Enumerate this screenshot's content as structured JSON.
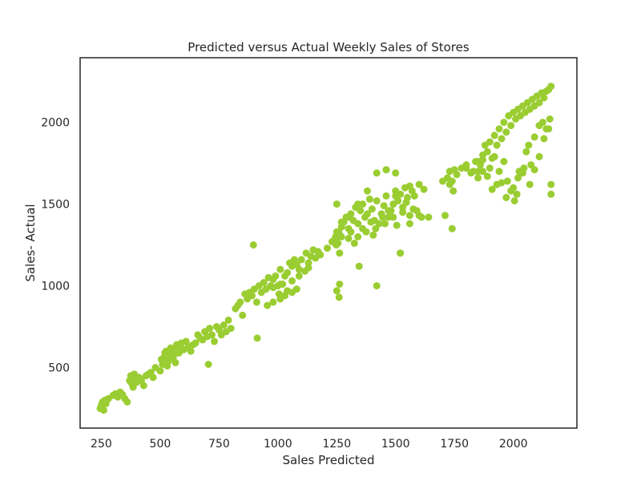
{
  "chart_data": {
    "type": "scatter",
    "title": "Predicted versus Actual Weekly Sales of Stores",
    "xlabel": "Sales Predicted",
    "ylabel": "Sales- Actual",
    "xlim": [
      160,
      2270
    ],
    "ylim": [
      130,
      2395
    ],
    "xticks": [
      250,
      500,
      750,
      1000,
      1250,
      1500,
      1750,
      2000
    ],
    "yticks": [
      500,
      1000,
      1500,
      2000
    ],
    "grid": false,
    "marker_color": "#9acd32",
    "x": [
      245,
      250,
      255,
      260,
      265,
      270,
      280,
      300,
      310,
      320,
      330,
      340,
      350,
      360,
      370,
      375,
      380,
      385,
      390,
      395,
      400,
      410,
      420,
      430,
      440,
      450,
      460,
      470,
      480,
      500,
      505,
      510,
      515,
      520,
      525,
      530,
      535,
      540,
      545,
      550,
      555,
      560,
      565,
      570,
      575,
      580,
      590,
      600,
      610,
      620,
      630,
      640,
      650,
      660,
      670,
      680,
      690,
      700,
      705,
      710,
      720,
      730,
      740,
      750,
      760,
      770,
      780,
      790,
      800,
      820,
      830,
      840,
      850,
      860,
      870,
      880,
      890,
      900,
      910,
      920,
      930,
      940,
      950,
      960,
      970,
      980,
      990,
      1000,
      1005,
      1010,
      1020,
      1030,
      1040,
      1050,
      1060,
      1070,
      1080,
      1090,
      1100,
      1120,
      1130,
      1140,
      1150,
      1160,
      1170,
      1180,
      1240,
      1245,
      1250,
      1255,
      1260,
      1270,
      1280,
      1290,
      1300,
      1310,
      1320,
      1330,
      1340,
      1350,
      1360,
      1370,
      1380,
      1390,
      1400,
      1410,
      1420,
      1430,
      1440,
      1450,
      1460,
      1470,
      1480,
      1490,
      1500,
      1510,
      1520,
      1530,
      1540,
      1550,
      1560,
      1570,
      1580,
      1600,
      1620,
      1700,
      1710,
      1720,
      1730,
      1740,
      1750,
      1760,
      1780,
      1800,
      1820,
      1840,
      1850,
      1860,
      1870,
      1880,
      1890,
      1900,
      1910,
      1920,
      1930,
      1940,
      1950,
      1960,
      1970,
      1980,
      1990,
      2000,
      2010,
      2020,
      2030,
      2040,
      2050,
      2060,
      2070,
      2080,
      2090,
      2100,
      2110,
      2120,
      2130,
      2140,
      2150,
      2160,
      896,
      912,
      1250,
      1262,
      1740,
      2160,
      1460,
      1520,
      1420,
      1500
    ],
    "y": [
      250,
      270,
      290,
      240,
      300,
      280,
      310,
      330,
      340,
      320,
      350,
      335,
      310,
      290,
      420,
      450,
      400,
      380,
      460,
      430,
      410,
      440,
      420,
      390,
      450,
      460,
      470,
      440,
      500,
      480,
      550,
      520,
      560,
      590,
      600,
      510,
      540,
      570,
      620,
      600,
      560,
      580,
      530,
      640,
      620,
      590,
      650,
      610,
      660,
      630,
      600,
      640,
      650,
      700,
      680,
      670,
      720,
      690,
      520,
      740,
      700,
      660,
      750,
      730,
      700,
      760,
      720,
      790,
      740,
      860,
      880,
      900,
      820,
      950,
      920,
      960,
      940,
      980,
      900,
      1000,
      960,
      1020,
      980,
      1050,
      1000,
      1040,
      1060,
      1000,
      950,
      1100,
      1010,
      1060,
      1080,
      1140,
      1120,
      1160,
      1130,
      1100,
      1160,
      1200,
      1140,
      1180,
      1220,
      1170,
      1210,
      1190,
      1280,
      1300,
      1330,
      1260,
      1320,
      1360,
      1390,
      1420,
      1350,
      1440,
      1400,
      1480,
      1380,
      1460,
      1500,
      1420,
      1440,
      1530,
      1470,
      1400,
      1520,
      1380,
      1440,
      1490,
      1550,
      1420,
      1460,
      1500,
      1580,
      1520,
      1560,
      1480,
      1600,
      1540,
      1610,
      1580,
      1550,
      1620,
      1590,
      1640,
      1430,
      1660,
      1700,
      1640,
      1710,
      1680,
      1720,
      1740,
      1690,
      1760,
      1700,
      1740,
      1800,
      1860,
      1820,
      1880,
      1780,
      1920,
      1860,
      1960,
      1900,
      2000,
      1940,
      2040,
      1980,
      2060,
      2020,
      2080,
      2040,
      2100,
      2060,
      2120,
      2080,
      2140,
      2100,
      2160,
      2120,
      2180,
      2150,
      2190,
      2200,
      2220,
      1250,
      680,
      1500,
      1010,
      1350,
      1560,
      1710,
      1200,
      1000,
      1690
    ],
    "extra_points": {
      "x": [
        980,
        1010,
        1040,
        1060,
        1090,
        1115,
        1130,
        1180,
        1210,
        1230,
        1248,
        1252,
        1258,
        1262,
        1270,
        1300,
        1310,
        1325,
        1340,
        1360,
        1375,
        1395,
        1405,
        1415,
        1445,
        1455,
        1470,
        1490,
        1505,
        1530,
        1545,
        1560,
        1575,
        1590,
        1610,
        1640,
        1730,
        1745,
        1800,
        1830,
        1850,
        1870,
        1900,
        1920,
        1940,
        1960,
        1975,
        1990,
        2005,
        2015,
        2025,
        2045,
        2055,
        2065,
        2075,
        2090,
        2110,
        2125,
        2140,
        2155,
        1850,
        1870,
        1890,
        1910,
        1930,
        1950,
        1970,
        2000,
        2020,
        2040,
        2070,
        2090,
        2110,
        2130,
        2150,
        2160,
        1250,
        1260,
        1345,
        1520,
        1560,
        1600,
        1500,
        1460,
        1420,
        1380,
        1340,
        1300,
        1270,
        1255,
        955,
        980,
        1010,
        1030,
        1060,
        1080
      ],
      "y": [
        990,
        1010,
        970,
        1030,
        1060,
        1090,
        1110,
        1190,
        1230,
        1270,
        1250,
        1300,
        1330,
        1200,
        1300,
        1290,
        1330,
        1260,
        1300,
        1350,
        1330,
        1390,
        1310,
        1350,
        1420,
        1380,
        1460,
        1420,
        1370,
        1450,
        1510,
        1430,
        1470,
        1460,
        1420,
        1420,
        1620,
        1580,
        1720,
        1700,
        1660,
        1770,
        1720,
        1790,
        1700,
        1760,
        1640,
        1580,
        1520,
        1560,
        1700,
        1720,
        1820,
        1860,
        1740,
        1910,
        1980,
        2000,
        1960,
        2020,
        1760,
        1700,
        1670,
        1590,
        1620,
        1630,
        1540,
        1600,
        1660,
        1690,
        1620,
        1710,
        1790,
        1900,
        1960,
        1620,
        970,
        930,
        1120,
        1200,
        1380,
        1430,
        1550,
        1710,
        1690,
        1580,
        1500,
        1420,
        1390,
        1330,
        880,
        900,
        920,
        940,
        960,
        980
      ]
    }
  }
}
